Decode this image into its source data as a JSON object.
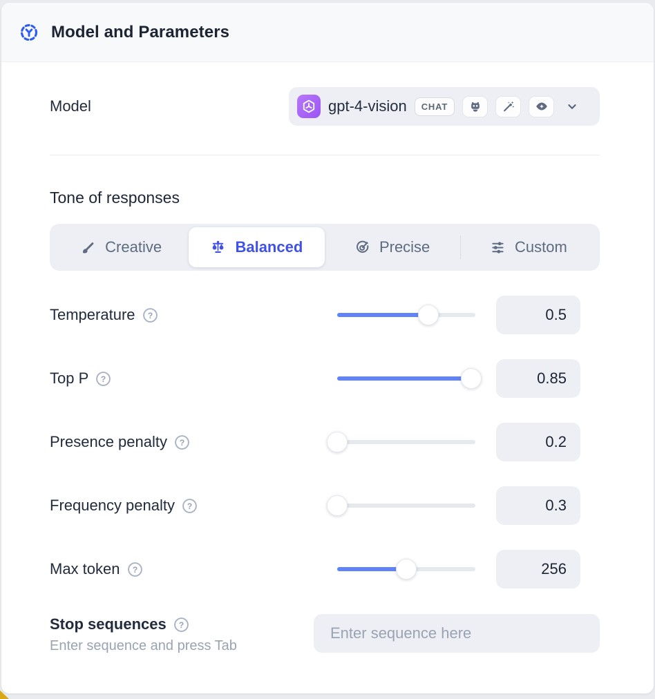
{
  "header": {
    "title": "Model and Parameters"
  },
  "model_row": {
    "label": "Model",
    "selected_model": "gpt-4-vision",
    "badge": "CHAT",
    "capability_icons": [
      "robot",
      "magic-wand",
      "vision-eye"
    ]
  },
  "tone": {
    "section_title": "Tone of responses",
    "options": [
      {
        "label": "Creative",
        "icon": "paintbrush",
        "selected": false
      },
      {
        "label": "Balanced",
        "icon": "balance-scale",
        "selected": true
      },
      {
        "label": "Precise",
        "icon": "target-arrow",
        "selected": false
      },
      {
        "label": "Custom",
        "icon": "sliders",
        "selected": false
      }
    ]
  },
  "parameters": [
    {
      "label": "Temperature",
      "value": "0.5",
      "fill": 0.66
    },
    {
      "label": "Top P",
      "value": "0.85",
      "fill": 0.97
    },
    {
      "label": "Presence penalty",
      "value": "0.2",
      "fill": 0
    },
    {
      "label": "Frequency penalty",
      "value": "0.3",
      "fill": 0
    },
    {
      "label": "Max token",
      "value": "256",
      "fill": 0.5
    }
  ],
  "stop_sequences": {
    "label": "Stop sequences",
    "helper": "Enter sequence and press Tab",
    "placeholder": "Enter sequence here"
  },
  "colors": {
    "accent_blue": "#6183fa",
    "selected_indigo": "#4051e8",
    "header_icon_blue": "#2e5bf0",
    "logo_purple": "#a45ef6",
    "accent_yellow": "#d8a816"
  }
}
